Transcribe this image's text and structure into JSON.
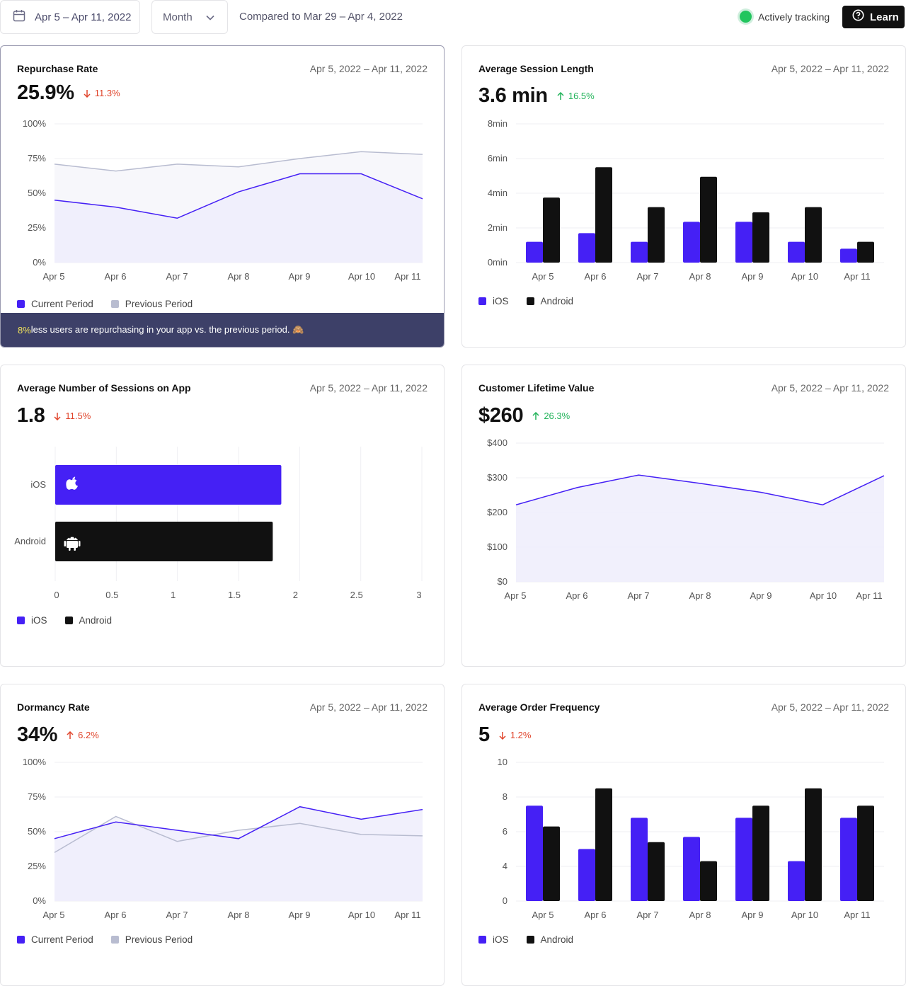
{
  "topbar": {
    "date_range": "Apr 5 – Apr 11, 2022",
    "period": "Month",
    "compared": "Compared to Mar 29 – Apr 4, 2022",
    "tracking": "Actively tracking",
    "learn": "Learn"
  },
  "colors": {
    "primary": "#4520f5",
    "secondary": "#111111",
    "previous": "#b8bcd0",
    "down": "#e0442b",
    "up": "#22b35a",
    "banner": "#3d4068"
  },
  "cards": {
    "repurchase": {
      "title": "Repurchase Rate",
      "date": "Apr 5, 2022 – Apr 11, 2022",
      "value": "25.9%",
      "change": "11.3%",
      "insight_highlight": "8%",
      "insight_text": " less users are repurchasing in your app vs. the previous period. 🙈"
    },
    "session_length": {
      "title": "Average Session Length",
      "date": "Apr 5, 2022 – Apr 11, 2022",
      "value": "3.6 min",
      "change": "16.5%"
    },
    "sessions": {
      "title": "Average Number of Sessions on App",
      "date": "Apr 5, 2022 – Apr 11, 2022",
      "value": "1.8",
      "change": "11.5%"
    },
    "clv": {
      "title": "Customer Lifetime Value",
      "date": "Apr 5, 2022 – Apr 11, 2022",
      "value": "$260",
      "change": "26.3%"
    },
    "dormancy": {
      "title": "Dormancy Rate",
      "date": "Apr 5, 2022 – Apr 11, 2022",
      "value": "34%",
      "change": "6.2%"
    },
    "order_freq": {
      "title": "Average Order Frequency",
      "date": "Apr 5, 2022 – Apr 11, 2022",
      "value": "5",
      "change": "1.2%"
    }
  },
  "legends": {
    "current": "Current Period",
    "previous": "Previous Period",
    "ios": "iOS",
    "android": "Android"
  },
  "chart_data": [
    {
      "id": "repurchase",
      "type": "area",
      "categories": [
        "Apr 5",
        "Apr 6",
        "Apr 7",
        "Apr 8",
        "Apr 9",
        "Apr 10",
        "Apr 11"
      ],
      "yticks": [
        "0%",
        "25%",
        "50%",
        "75%",
        "100%"
      ],
      "ylim": [
        0,
        100
      ],
      "series": [
        {
          "name": "Previous Period",
          "values": [
            71,
            66,
            71,
            69,
            75,
            80,
            78
          ]
        },
        {
          "name": "Current Period",
          "values": [
            45,
            40,
            32,
            51,
            64,
            64,
            46
          ]
        }
      ]
    },
    {
      "id": "session_length",
      "type": "bar",
      "categories": [
        "Apr 5",
        "Apr 6",
        "Apr 7",
        "Apr 8",
        "Apr 9",
        "Apr 10",
        "Apr 11"
      ],
      "yticks": [
        "0min",
        "2min",
        "4min",
        "6min",
        "8min"
      ],
      "ylim": [
        0,
        8
      ],
      "series": [
        {
          "name": "iOS",
          "values": [
            1.2,
            1.7,
            1.2,
            2.35,
            2.35,
            1.2,
            0.8
          ]
        },
        {
          "name": "Android",
          "values": [
            3.75,
            5.5,
            3.2,
            4.95,
            2.9,
            3.2,
            1.2
          ]
        }
      ]
    },
    {
      "id": "sessions",
      "type": "bar",
      "orientation": "horizontal",
      "categories": [
        "iOS",
        "Android"
      ],
      "xticks": [
        "0",
        "0.5",
        "1",
        "1.5",
        "2",
        "2.5",
        "3"
      ],
      "xlim": [
        0,
        3
      ],
      "values": [
        1.85,
        1.78
      ]
    },
    {
      "id": "clv",
      "type": "area",
      "categories": [
        "Apr 5",
        "Apr 6",
        "Apr 7",
        "Apr 8",
        "Apr 9",
        "Apr 10",
        "Apr 11"
      ],
      "yticks": [
        "$0",
        "$100",
        "$200",
        "$300",
        "$400"
      ],
      "ylim": [
        0,
        400
      ],
      "series": [
        {
          "name": "",
          "values": [
            222,
            272,
            308,
            284,
            258,
            222,
            306
          ]
        }
      ]
    },
    {
      "id": "dormancy",
      "type": "area",
      "categories": [
        "Apr 5",
        "Apr 6",
        "Apr 7",
        "Apr 8",
        "Apr 9",
        "Apr 10",
        "Apr 11"
      ],
      "yticks": [
        "0%",
        "25%",
        "50%",
        "75%",
        "100%"
      ],
      "ylim": [
        0,
        100
      ],
      "series": [
        {
          "name": "Previous Period",
          "values": [
            35,
            61,
            43,
            51,
            56,
            48,
            47
          ]
        },
        {
          "name": "Current Period",
          "values": [
            45,
            57,
            51,
            45,
            68,
            59,
            66
          ]
        }
      ]
    },
    {
      "id": "order_freq",
      "type": "bar",
      "categories": [
        "Apr 5",
        "Apr 6",
        "Apr 7",
        "Apr 8",
        "Apr 9",
        "Apr 10",
        "Apr 11"
      ],
      "yticks": [
        "0",
        "4",
        "6",
        "8",
        "10"
      ],
      "ylim": [
        0,
        10
      ],
      "series": [
        {
          "name": "iOS",
          "values": [
            7.5,
            5.0,
            6.8,
            5.7,
            6.8,
            4.3,
            6.8
          ]
        },
        {
          "name": "Android",
          "values": [
            6.3,
            8.5,
            5.4,
            4.3,
            7.5,
            8.5,
            7.5
          ]
        }
      ]
    }
  ]
}
